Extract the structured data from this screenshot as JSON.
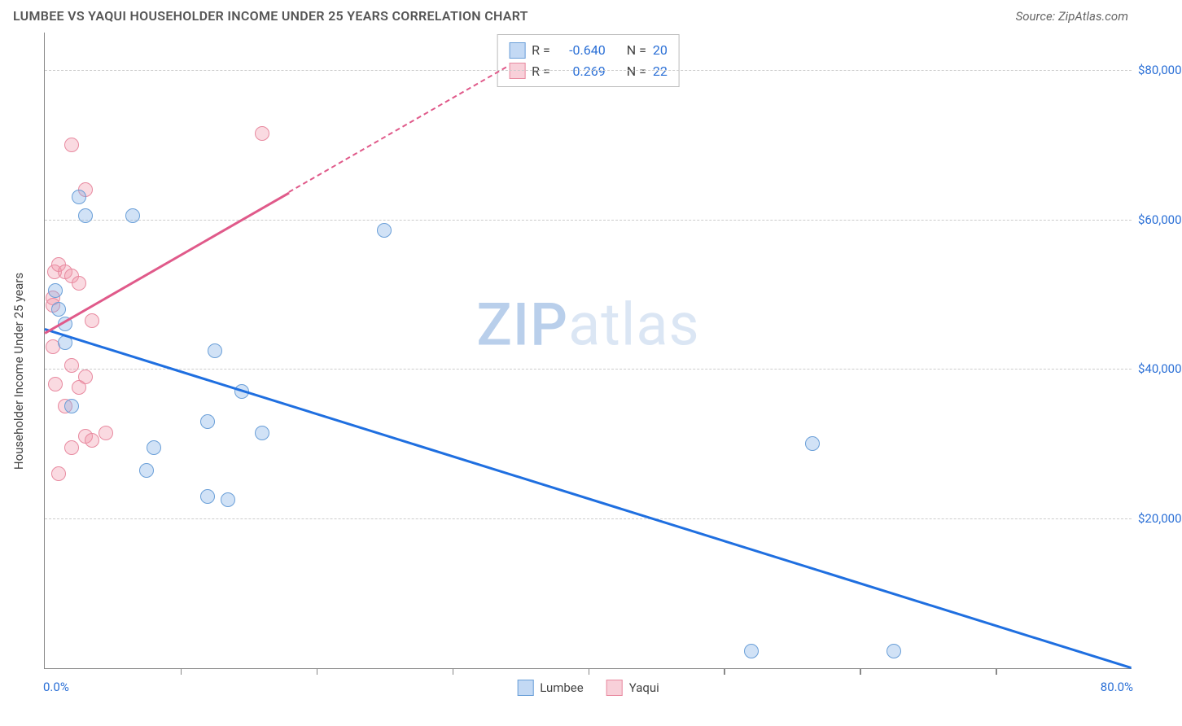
{
  "header": {
    "title": "LUMBEE VS YAQUI HOUSEHOLDER INCOME UNDER 25 YEARS CORRELATION CHART",
    "source": "Source: ZipAtlas.com"
  },
  "watermark": {
    "brandA": "ZIP",
    "brandB": "atlas"
  },
  "chart": {
    "type": "scatter",
    "ylabel": "Householder Income Under 25 years",
    "xlim": [
      0,
      80
    ],
    "ylim": [
      0,
      85000
    ],
    "x_axis": {
      "min_label": "0.0%",
      "max_label": "80.0%",
      "tick_positions_pct": [
        10,
        20,
        30,
        40,
        50,
        60,
        70
      ]
    },
    "y_gridlines": [
      {
        "value": 20000,
        "label": "$20,000"
      },
      {
        "value": 40000,
        "label": "$40,000"
      },
      {
        "value": 60000,
        "label": "$60,000"
      },
      {
        "value": 80000,
        "label": "$80,000"
      }
    ],
    "colors": {
      "series_a_fill": "rgba(122,171,230,0.35)",
      "series_a_stroke": "#6a9fd8",
      "series_b_fill": "rgba(240,150,170,0.35)",
      "series_b_stroke": "#e88aa0",
      "line_a": "#1f6fe0",
      "line_b": "#e05a8a",
      "tick_text": "#2a6fd6",
      "axis": "#888888",
      "grid": "#cccccc",
      "background": "#ffffff"
    },
    "series_a": {
      "name": "Lumbee",
      "points": [
        {
          "x": 1.0,
          "y": 48000
        },
        {
          "x": 1.5,
          "y": 43500
        },
        {
          "x": 1.5,
          "y": 46000
        },
        {
          "x": 2.5,
          "y": 63000
        },
        {
          "x": 3.0,
          "y": 60500
        },
        {
          "x": 6.5,
          "y": 60500
        },
        {
          "x": 25.0,
          "y": 58500
        },
        {
          "x": 8.0,
          "y": 29500
        },
        {
          "x": 12.5,
          "y": 42500
        },
        {
          "x": 12.0,
          "y": 33000
        },
        {
          "x": 14.5,
          "y": 37000
        },
        {
          "x": 16.0,
          "y": 31500
        },
        {
          "x": 7.5,
          "y": 26500
        },
        {
          "x": 12.0,
          "y": 23000
        },
        {
          "x": 13.5,
          "y": 22500
        },
        {
          "x": 56.5,
          "y": 30000
        },
        {
          "x": 52.0,
          "y": 2300
        },
        {
          "x": 62.5,
          "y": 2300
        },
        {
          "x": 2.0,
          "y": 35000
        },
        {
          "x": 0.8,
          "y": 50500
        }
      ],
      "trend": {
        "x1": 0,
        "y1": 45500,
        "x2": 80,
        "y2": 200,
        "solid_until_x": 80
      }
    },
    "series_b": {
      "name": "Yaqui",
      "points": [
        {
          "x": 2.0,
          "y": 70000
        },
        {
          "x": 3.0,
          "y": 64000
        },
        {
          "x": 16.0,
          "y": 71500
        },
        {
          "x": 0.7,
          "y": 53000
        },
        {
          "x": 1.0,
          "y": 54000
        },
        {
          "x": 1.5,
          "y": 53000
        },
        {
          "x": 2.0,
          "y": 52500
        },
        {
          "x": 2.5,
          "y": 51500
        },
        {
          "x": 0.6,
          "y": 49500
        },
        {
          "x": 0.6,
          "y": 48500
        },
        {
          "x": 3.5,
          "y": 46500
        },
        {
          "x": 2.0,
          "y": 40500
        },
        {
          "x": 3.0,
          "y": 39000
        },
        {
          "x": 0.8,
          "y": 38000
        },
        {
          "x": 2.5,
          "y": 37500
        },
        {
          "x": 1.5,
          "y": 35000
        },
        {
          "x": 3.0,
          "y": 31000
        },
        {
          "x": 3.5,
          "y": 30500
        },
        {
          "x": 4.5,
          "y": 31500
        },
        {
          "x": 2.0,
          "y": 29500
        },
        {
          "x": 1.0,
          "y": 26000
        },
        {
          "x": 0.6,
          "y": 43000
        }
      ],
      "trend": {
        "x1": 0,
        "y1": 45000,
        "x2": 34,
        "y2": 80500,
        "solid_until_x": 18
      }
    },
    "legend_top": {
      "rows": [
        {
          "series": "a",
          "r_label": "R =",
          "r": "-0.640",
          "n_label": "N =",
          "n": "20"
        },
        {
          "series": "b",
          "r_label": "R =",
          "r": "0.269",
          "n_label": "N =",
          "n": "22"
        }
      ]
    },
    "legend_bottom": {
      "items": [
        {
          "series": "a",
          "label": "Lumbee"
        },
        {
          "series": "b",
          "label": "Yaqui"
        }
      ]
    }
  }
}
